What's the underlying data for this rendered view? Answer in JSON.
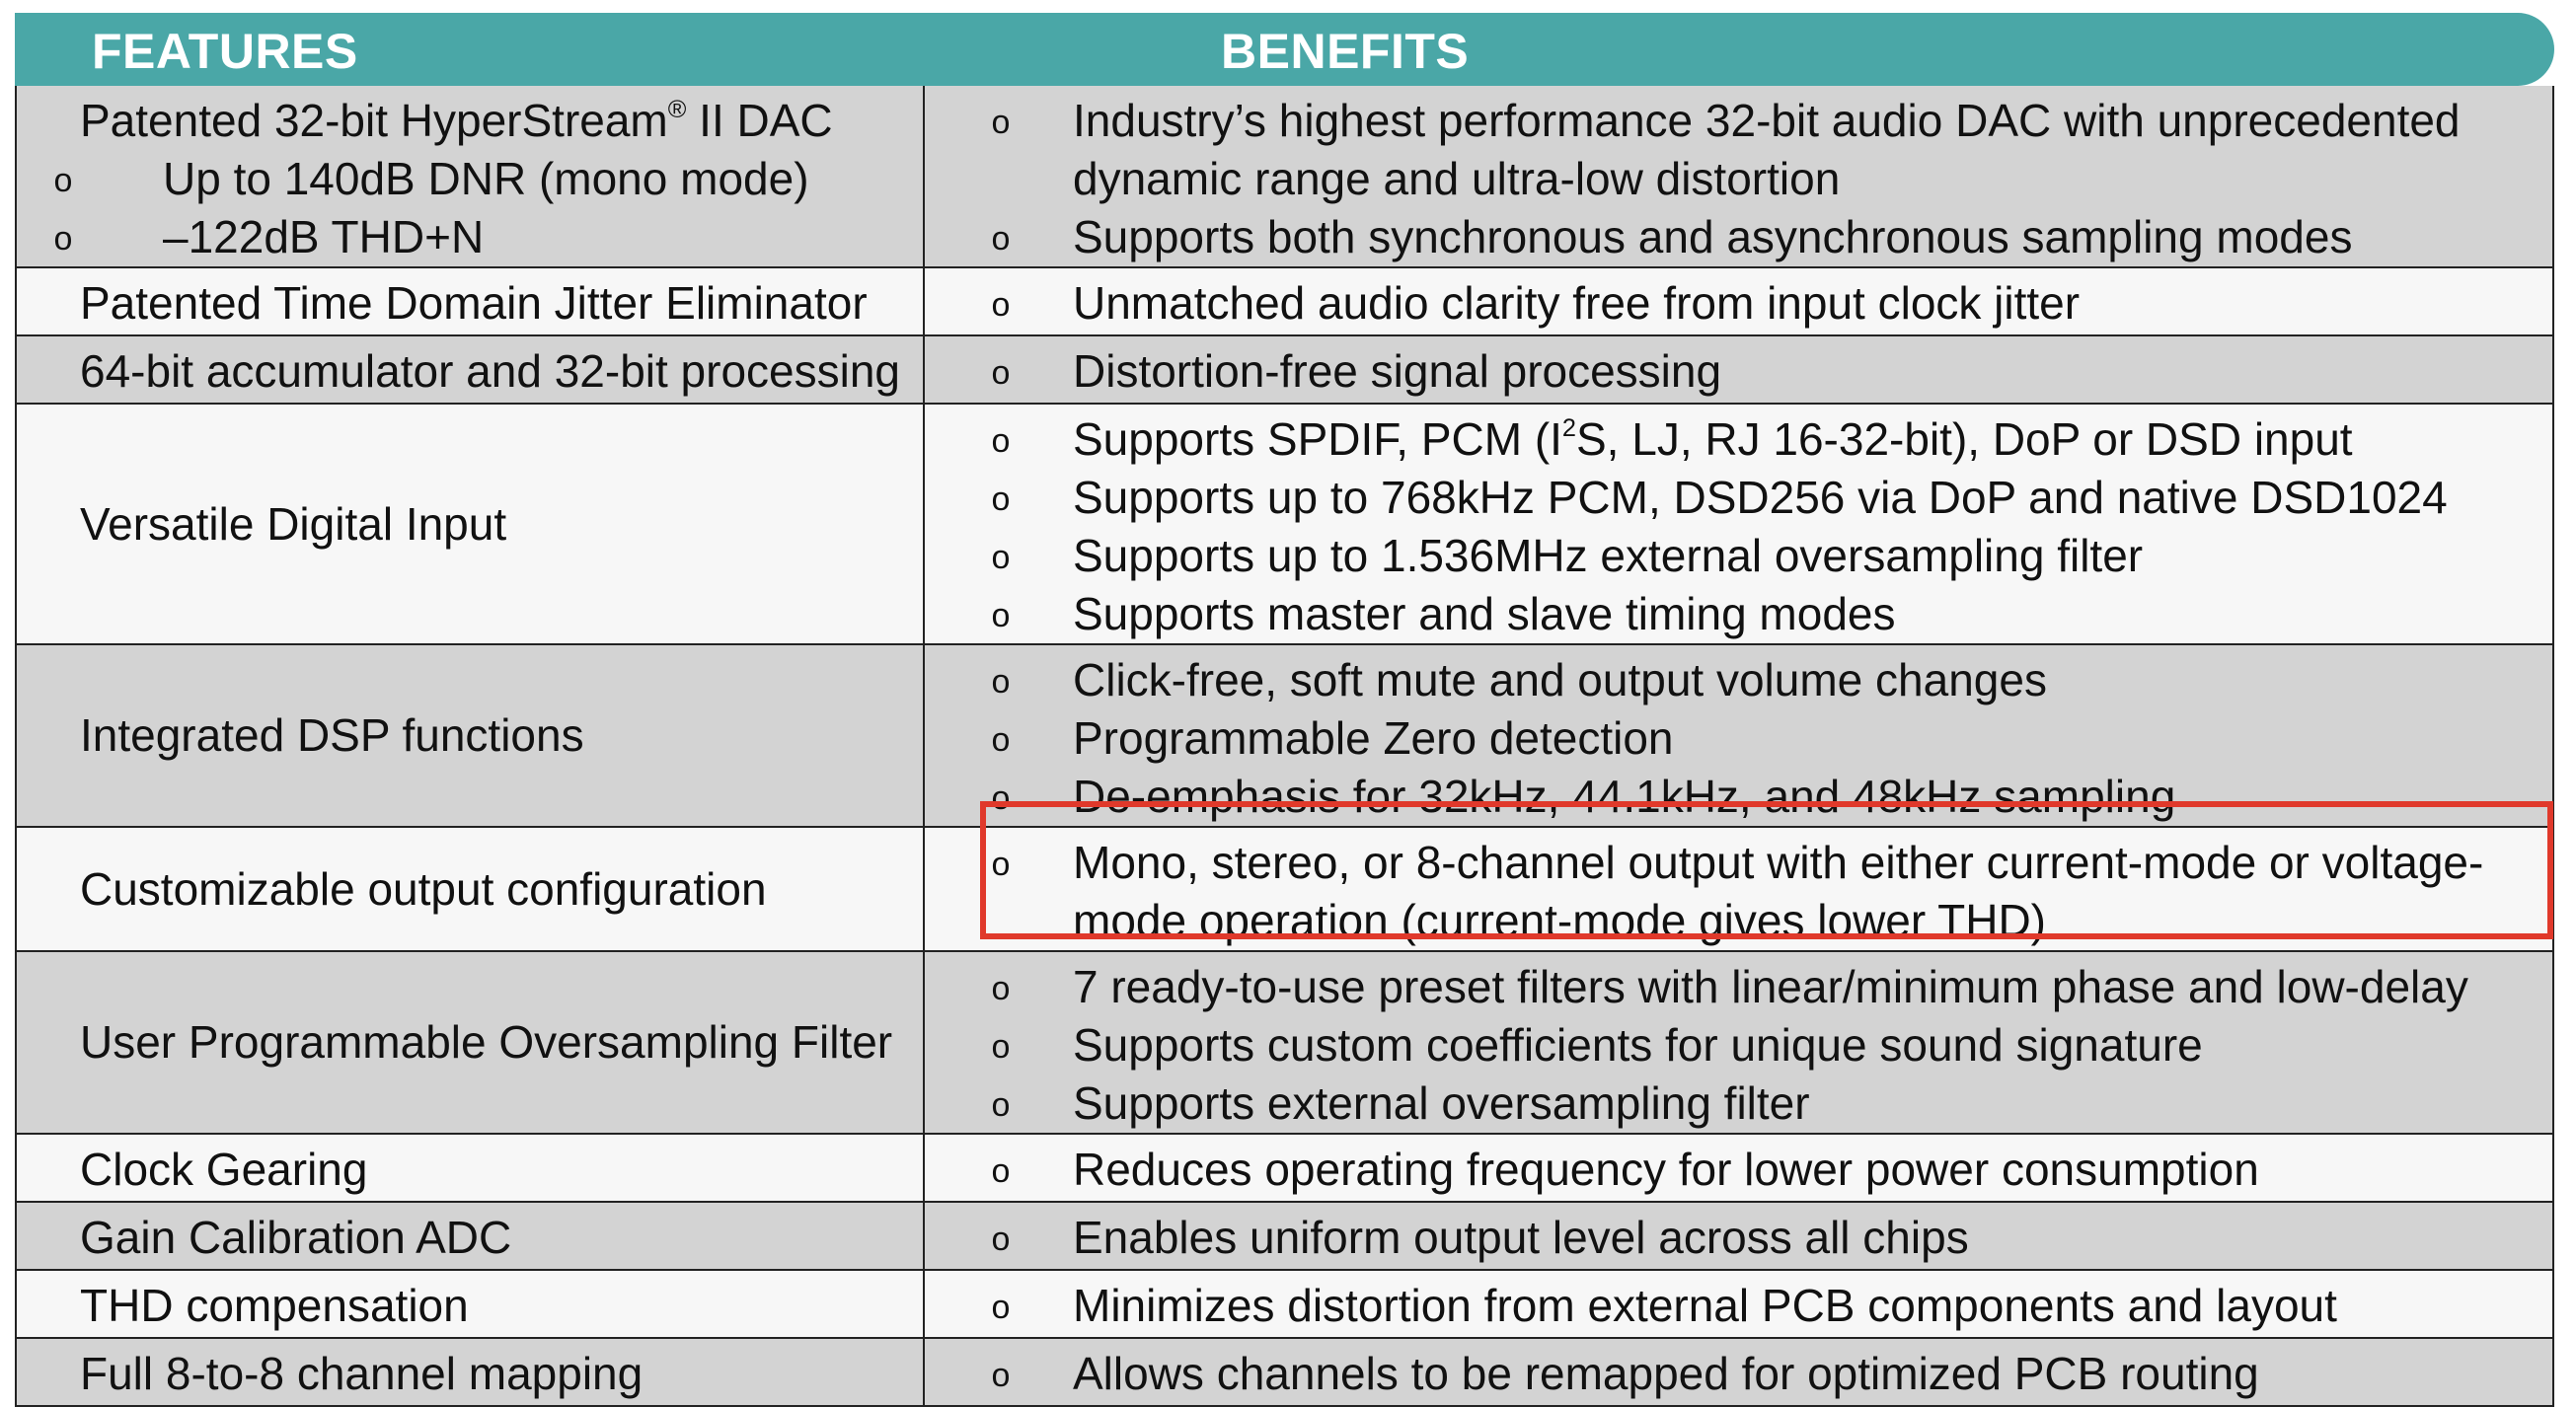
{
  "header": {
    "features_label": "FEATURES",
    "benefits_label": "BENEFITS",
    "bar_color": "#4aa7a7"
  },
  "bullet_glyph": "o",
  "highlight_color": "#e0392b",
  "rows": [
    {
      "feature": "Patented 32-bit HyperStream",
      "feature_mark": "®",
      "feature_suffix": " II DAC",
      "feature_sub": [
        "Up to 140dB DNR (mono mode)",
        "–122dB THD+N"
      ],
      "benefits": [
        "Industry’s highest performance 32-bit audio DAC with unprecedented dynamic range and ultra-low distortion",
        "Supports both synchronous and asynchronous sampling modes"
      ]
    },
    {
      "feature": "Patented Time Domain Jitter Eliminator",
      "benefits": [
        "Unmatched audio clarity free from input clock jitter"
      ]
    },
    {
      "feature": "64-bit accumulator and 32-bit processing",
      "benefits": [
        "Distortion-free signal processing"
      ]
    },
    {
      "feature": "Versatile Digital Input",
      "benefit_first_pre": "Supports SPDIF, PCM (I",
      "benefit_first_sup": "2",
      "benefit_first_post": "S, LJ, RJ 16-32-bit), DoP or DSD input",
      "benefits": [
        "Supports up to 768kHz PCM, DSD256 via DoP and native DSD1024",
        "Supports up to 1.536MHz external oversampling filter",
        "Supports master and slave timing modes"
      ]
    },
    {
      "feature": "Integrated DSP functions",
      "benefits": [
        "Click-free, soft mute and output volume changes",
        "Programmable Zero detection",
        "De-emphasis for 32kHz, 44.1kHz, and 48kHz sampling"
      ]
    },
    {
      "feature": "Customizable output configuration",
      "benefits": [
        "Mono, stereo, or 8-channel output with either current-mode or voltage-mode operation (current-mode gives lower THD)"
      ]
    },
    {
      "feature": "User Programmable Oversampling Filter",
      "benefits": [
        "7 ready-to-use preset filters with linear/minimum phase and low-delay",
        "Supports custom coefficients for unique sound signature",
        "Supports external oversampling filter"
      ]
    },
    {
      "feature": "Clock Gearing",
      "benefits": [
        "Reduces operating frequency for lower power consumption"
      ]
    },
    {
      "feature": "Gain Calibration ADC",
      "benefits": [
        "Enables uniform output level across all chips"
      ]
    },
    {
      "feature": "THD compensation",
      "benefits": [
        "Minimizes distortion from external PCB components and layout"
      ]
    },
    {
      "feature": "Full 8-to-8 channel mapping",
      "benefits": [
        "Allows channels to be remapped for optimized PCB routing"
      ]
    }
  ]
}
